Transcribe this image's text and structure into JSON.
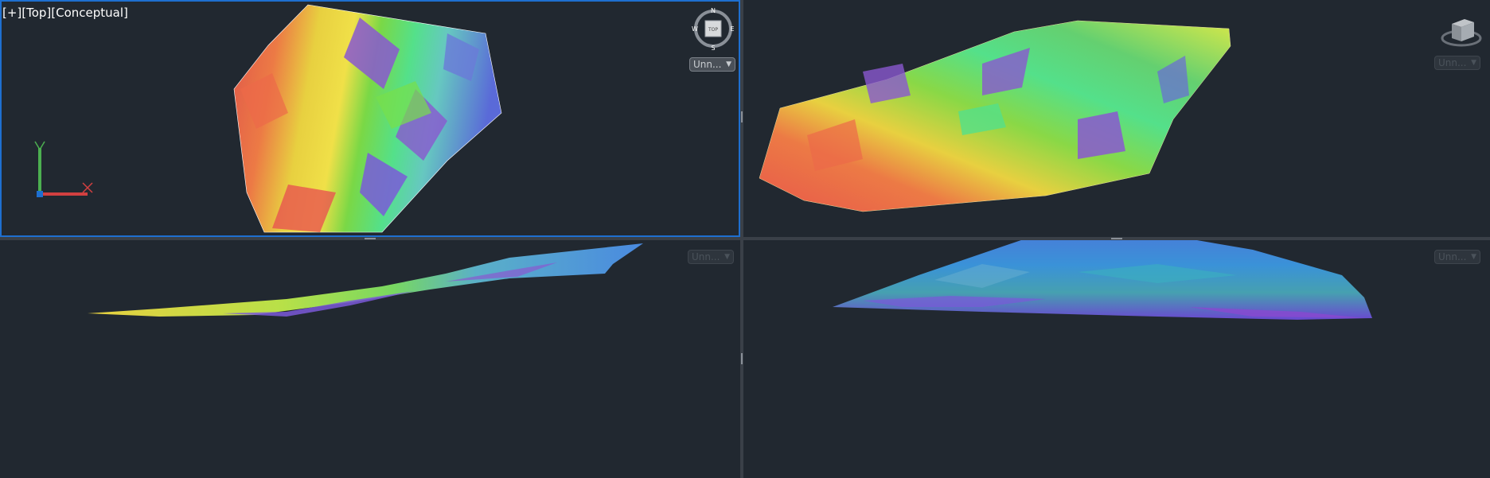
{
  "viewports": {
    "top_left": {
      "label": "[+][Top][Conceptual]",
      "named_view": "Unn...",
      "compass": {
        "north": "N",
        "south": "S",
        "east": "E",
        "west": "W",
        "face": "TOP"
      }
    },
    "top_right": {
      "named_view": "Unn..."
    },
    "bottom_left": {
      "named_view": "Unn..."
    },
    "bottom_right": {
      "named_view": "Unn..."
    }
  },
  "colors": {
    "active_border": "#1e6fd0",
    "background": "#212830",
    "ucs_x": "#d24040",
    "ucs_y": "#4caf50",
    "ucs_origin": "#1e6fd0"
  }
}
